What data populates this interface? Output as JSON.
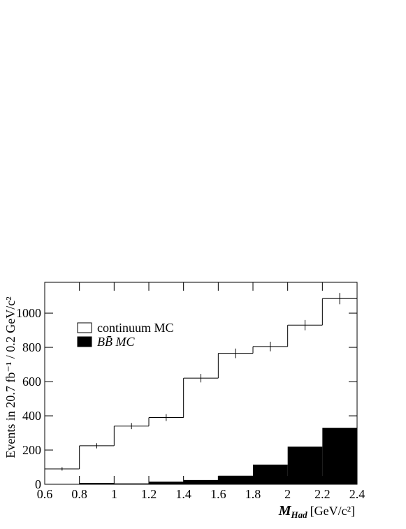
{
  "chart_data": {
    "type": "histogram",
    "ylabel": "Events in 20.7 fb⁻¹ / 0.2 GeV/c²",
    "xlabel": {
      "symbol": "M",
      "subscript": "Had",
      "unit": "[GeV/c²]"
    },
    "bins": [
      0.6,
      0.8,
      1.0,
      1.2,
      1.4,
      1.6,
      1.8,
      2.0,
      2.2,
      2.4
    ],
    "series": [
      {
        "name": "continuum MC",
        "style": "outline",
        "color": "#000000",
        "values": [
          90,
          225,
          340,
          390,
          620,
          765,
          805,
          930,
          1085
        ],
        "errors": [
          10,
          15,
          18,
          20,
          25,
          28,
          28,
          30,
          33
        ]
      },
      {
        "name": "BB̄ MC",
        "style": "filled",
        "color": "#000000",
        "values": [
          2,
          8,
          5,
          15,
          25,
          50,
          115,
          220,
          330
        ]
      }
    ],
    "xlim": [
      0.6,
      2.4
    ],
    "ylim": [
      0,
      1180
    ],
    "xticks": [
      0.6,
      0.8,
      1,
      1.2,
      1.4,
      1.6,
      1.8,
      2,
      2.2,
      2.4
    ],
    "yticks": [
      0,
      200,
      400,
      600,
      800,
      1000
    ]
  }
}
